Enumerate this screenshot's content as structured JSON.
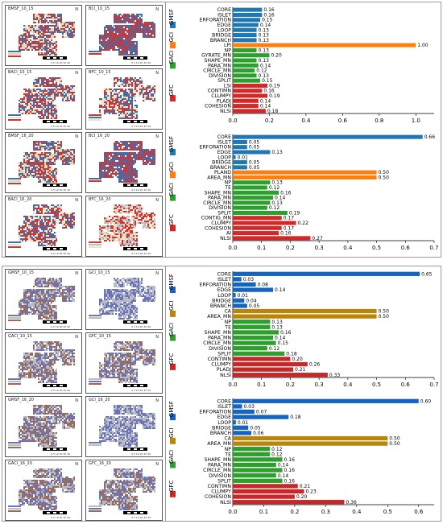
{
  "colors": {
    "gmsf": "#1f77b4",
    "gci": "#ff7f0e",
    "gaci": "#2ca02c",
    "gfc": "#d62728",
    "b_gmsf": "#1565c0",
    "b_gci": "#b8860b",
    "b_gaci": "#2e9e2e",
    "b_gfc": "#c62828",
    "map_blue": "#3b6fb6",
    "map_red": "#d4342c",
    "map_cream": "#efe3c4",
    "map_slate": "#6b74b8",
    "map_brown": "#a06a4e",
    "map_gray": "#b9bcc6"
  },
  "maps_top": [
    {
      "title": "BMSF_10_15",
      "palette": [
        "#3b6fb6",
        "#e8d7ad",
        "#d4342c"
      ]
    },
    {
      "title": "BCI_10_15",
      "palette": [
        "#3b6fb6",
        "#d4342c"
      ]
    },
    {
      "title": "BACI_10_15",
      "palette": [
        "#3b6fb6",
        "#efe3c4",
        "#d4342c"
      ]
    },
    {
      "title": "BFC_10_15",
      "palette": [
        "#d4342c",
        "#3b6fb6",
        "#efe3c4"
      ]
    },
    {
      "title": "BMSF_16_20",
      "palette": [
        "#3b6fb6",
        "#e8d7ad",
        "#d4342c"
      ]
    },
    {
      "title": "BCI_16_20",
      "palette": [
        "#3b6fb6",
        "#d4342c"
      ]
    },
    {
      "title": "BACI_16_20",
      "palette": [
        "#3b6fb6",
        "#efe3c4",
        "#d4342c"
      ]
    },
    {
      "title": "BFC_16_20",
      "palette": [
        "#d4342c",
        "#b9bcc6",
        "#efe3c4"
      ]
    }
  ],
  "maps_bottom": [
    {
      "title": "GMSF_10_15",
      "palette": [
        "#6b74b8",
        "#b9bcc6",
        "#a06a4e"
      ]
    },
    {
      "title": "GCI_10_15",
      "palette": [
        "#6b74b8",
        "#b9bcc6"
      ]
    },
    {
      "title": "GACI_10_15",
      "palette": [
        "#6b74b8",
        "#b9bcc6",
        "#a06a4e"
      ]
    },
    {
      "title": "GFC_10_15",
      "palette": [
        "#b9bcc6",
        "#6b74b8",
        "#a06a4e"
      ]
    },
    {
      "title": "GMSF_16_20",
      "palette": [
        "#6b74b8",
        "#b9bcc6",
        "#a06a4e"
      ]
    },
    {
      "title": "GCI_16_20",
      "palette": [
        "#6b74b8",
        "#b9bcc6"
      ]
    },
    {
      "title": "GACI_16_20",
      "palette": [
        "#6b74b8",
        "#b9bcc6",
        "#a06a4e"
      ]
    },
    {
      "title": "GFC_16_20",
      "palette": [
        "#b9bcc6",
        "#6b74b8",
        "#a06a4e"
      ]
    }
  ],
  "map_labels": {
    "north": "N",
    "scale": "0 5 10 20 30 40"
  },
  "chart_data": [
    {
      "type": "bar",
      "orientation": "horizontal",
      "xlim": [
        0,
        1.1
      ],
      "xticks": [
        "0.0",
        "0.2",
        "0.4",
        "0.6",
        "0.8",
        "1.0"
      ],
      "tick_values": [
        0,
        0.2,
        0.4,
        0.6,
        0.8,
        1.0
      ],
      "groups": [
        {
          "name": "GMSF",
          "color_key": "gmsf",
          "rows": [
            {
              "label": "CORE",
              "value": 0.16,
              "text": "0.16"
            },
            {
              "label": "ISLET",
              "value": 0.16,
              "text": "0.16"
            },
            {
              "label": "ERFORATION",
              "value": 0.15,
              "text": "0.15"
            },
            {
              "label": "EDGE",
              "value": 0.14,
              "text": "0.14"
            },
            {
              "label": "LOOP",
              "value": 0.13,
              "text": "0.13"
            },
            {
              "label": "BRIDGE",
              "value": 0.13,
              "text": "0.13"
            },
            {
              "label": "BRANCH",
              "value": 0.13,
              "text": "0.13"
            }
          ]
        },
        {
          "name": "GCI",
          "color_key": "gci",
          "rows": [
            {
              "label": "LPI",
              "value": 1.0,
              "text": "1.00"
            }
          ]
        },
        {
          "name": "GACI",
          "color_key": "gaci",
          "rows": [
            {
              "label": "NP",
              "value": 0.13,
              "text": "0.13"
            },
            {
              "label": "GYRATE_MN",
              "value": 0.2,
              "text": "0.20"
            },
            {
              "label": "SHAPE_MN",
              "value": 0.13,
              "text": "0.13"
            },
            {
              "label": "PARA_MN",
              "value": 0.14,
              "text": "0.14"
            },
            {
              "label": "CIRCLE_MN",
              "value": 0.12,
              "text": "0.12"
            },
            {
              "label": "DIVISION",
              "value": 0.13,
              "text": "0.13"
            },
            {
              "label": "SPLIT",
              "value": 0.15,
              "text": "0.15"
            }
          ]
        },
        {
          "name": "GFC",
          "color_key": "gfc",
          "rows": [
            {
              "label": "LSI",
              "value": 0.19,
              "text": "0.19"
            },
            {
              "label": "CONTIMN",
              "value": 0.16,
              "text": "0.16"
            },
            {
              "label": "CLUMPY",
              "value": 0.19,
              "text": "0.19"
            },
            {
              "label": "PLADJ",
              "value": 0.14,
              "text": "0.14"
            },
            {
              "label": "COHESION",
              "value": 0.14,
              "text": "0.14"
            },
            {
              "label": "NLSI",
              "value": 0.18,
              "text": "0.18"
            }
          ]
        }
      ]
    },
    {
      "type": "bar",
      "orientation": "horizontal",
      "xlim": [
        0,
        0.7
      ],
      "xticks": [
        "0.0",
        "0.1",
        "0.2",
        "0.3",
        "0.4",
        "0.5",
        "0.6",
        "0.7"
      ],
      "tick_values": [
        0,
        0.1,
        0.2,
        0.3,
        0.4,
        0.5,
        0.6,
        0.7
      ],
      "groups": [
        {
          "name": "GMSF",
          "color_key": "gmsf",
          "rows": [
            {
              "label": "CORE",
              "value": 0.66,
              "text": "0.66"
            },
            {
              "label": "ISLET",
              "value": 0.05,
              "text": "0.05"
            },
            {
              "label": "ERFORATION",
              "value": 0.05,
              "text": "0.05"
            },
            {
              "label": "EDGE",
              "value": 0.13,
              "text": "0.13"
            },
            {
              "label": "LOOP",
              "value": 0.01,
              "text": "0.01"
            },
            {
              "label": "BRIDGE",
              "value": 0.05,
              "text": "0.05"
            },
            {
              "label": "BRANCH",
              "value": 0.05,
              "text": "0.05"
            }
          ]
        },
        {
          "name": "GCI",
          "color_key": "gci",
          "rows": [
            {
              "label": "PLAND",
              "value": 0.5,
              "text": "0.50"
            },
            {
              "label": "AREA_MN",
              "value": 0.5,
              "text": "0.50"
            }
          ]
        },
        {
          "name": "GACI",
          "color_key": "gaci",
          "rows": [
            {
              "label": "NP",
              "value": 0.13,
              "text": "0.13"
            },
            {
              "label": "TE",
              "value": 0.12,
              "text": "0.12"
            },
            {
              "label": "SHAPE_MN",
              "value": 0.16,
              "text": "0.16"
            },
            {
              "label": "PARA_MN",
              "value": 0.14,
              "text": "0.14"
            },
            {
              "label": "CIRCLE_MN",
              "value": 0.13,
              "text": "0.13"
            },
            {
              "label": "DIVISION",
              "value": 0.12,
              "text": "0.12"
            },
            {
              "label": "SPLIT",
              "value": 0.19,
              "text": "0.19"
            }
          ]
        },
        {
          "name": "GFC",
          "color_key": "gfc",
          "rows": [
            {
              "label": "CONTIG_MN",
              "value": 0.17,
              "text": "0.17"
            },
            {
              "label": "CLUMPY",
              "value": 0.22,
              "text": "0.22"
            },
            {
              "label": "COHESION",
              "value": 0.17,
              "text": "0.17"
            },
            {
              "label": "AI",
              "value": 0.16,
              "text": "0.16"
            },
            {
              "label": "NLSI",
              "value": 0.27,
              "text": "0.27"
            }
          ]
        }
      ]
    },
    {
      "type": "bar",
      "orientation": "horizontal",
      "xlim": [
        0,
        0.7
      ],
      "xticks": [
        "0.0",
        "0.1",
        "0.2",
        "0.3",
        "0.4",
        "0.5",
        "0.6",
        "0.7"
      ],
      "tick_values": [
        0,
        0.1,
        0.2,
        0.3,
        0.4,
        0.5,
        0.6,
        0.7
      ],
      "groups": [
        {
          "name": "GMSF",
          "color_key": "b_gmsf",
          "rows": [
            {
              "label": "CORE",
              "value": 0.65,
              "text": "0.65"
            },
            {
              "label": "ISLET",
              "value": 0.03,
              "text": "0.03"
            },
            {
              "label": "ERFORATION",
              "value": 0.08,
              "text": "0.08"
            },
            {
              "label": "EDGE",
              "value": 0.14,
              "text": "0.14"
            },
            {
              "label": "LOOP",
              "value": 0.01,
              "text": "0.01"
            },
            {
              "label": "BRIDGE",
              "value": 0.04,
              "text": "0.04"
            },
            {
              "label": "BRANCH",
              "value": 0.05,
              "text": "0.05"
            }
          ]
        },
        {
          "name": "GCI",
          "color_key": "b_gci",
          "rows": [
            {
              "label": "CA",
              "value": 0.5,
              "text": "0.50"
            },
            {
              "label": "AREA_MN",
              "value": 0.5,
              "text": "0.50"
            }
          ]
        },
        {
          "name": "GACI",
          "color_key": "b_gaci",
          "rows": [
            {
              "label": "NP",
              "value": 0.13,
              "text": "0.13"
            },
            {
              "label": "TE",
              "value": 0.13,
              "text": "0.13"
            },
            {
              "label": "SHAPE_MN",
              "value": 0.16,
              "text": "0.16"
            },
            {
              "label": "PARA_MN",
              "value": 0.14,
              "text": "0.14"
            },
            {
              "label": "CIRCLE_MN",
              "value": 0.15,
              "text": "0.15"
            },
            {
              "label": "DIVISION",
              "value": 0.12,
              "text": "0.12"
            },
            {
              "label": "SPLIT",
              "value": 0.18,
              "text": "0.18"
            }
          ]
        },
        {
          "name": "GFC",
          "color_key": "b_gfc",
          "rows": [
            {
              "label": "CONTIMN",
              "value": 0.2,
              "text": "0.20"
            },
            {
              "label": "CLUMPY",
              "value": 0.26,
              "text": "0.26"
            },
            {
              "label": "PLADJ",
              "value": 0.21,
              "text": "0.21"
            },
            {
              "label": "NLSI",
              "value": 0.33,
              "text": "0.33"
            }
          ]
        }
      ]
    },
    {
      "type": "bar",
      "orientation": "horizontal",
      "xlim": [
        0,
        0.65
      ],
      "xticks": [
        "0.0",
        "0.1",
        "0.2",
        "0.3",
        "0.4",
        "0.5",
        "0.6"
      ],
      "tick_values": [
        0,
        0.1,
        0.2,
        0.3,
        0.4,
        0.5,
        0.6
      ],
      "groups": [
        {
          "name": "GMSF",
          "color_key": "b_gmsf",
          "rows": [
            {
              "label": "CORE",
              "value": 0.6,
              "text": "0.60"
            },
            {
              "label": "ISLET",
              "value": 0.03,
              "text": "0.03"
            },
            {
              "label": "ERFORATION",
              "value": 0.07,
              "text": "0.07"
            },
            {
              "label": "EDGE",
              "value": 0.18,
              "text": "0.18"
            },
            {
              "label": "LOOP",
              "value": 0.01,
              "text": "0.01"
            },
            {
              "label": "BRIDGE",
              "value": 0.05,
              "text": "0.05"
            },
            {
              "label": "BRANCH",
              "value": 0.06,
              "text": "0.06"
            }
          ]
        },
        {
          "name": "GCI",
          "color_key": "b_gci",
          "rows": [
            {
              "label": "CA",
              "value": 0.5,
              "text": "0.50"
            },
            {
              "label": "AREA_MN",
              "value": 0.5,
              "text": "0.50"
            }
          ]
        },
        {
          "name": "GACI",
          "color_key": "b_gaci",
          "rows": [
            {
              "label": "NP",
              "value": 0.12,
              "text": "0.12"
            },
            {
              "label": "TE",
              "value": 0.12,
              "text": "0.12"
            },
            {
              "label": "SHAPE_MN",
              "value": 0.16,
              "text": "0.16"
            },
            {
              "label": "PARA_MN",
              "value": 0.14,
              "text": "0.14"
            },
            {
              "label": "CIRCLE_MN",
              "value": 0.16,
              "text": "0.16"
            },
            {
              "label": "DIVISION",
              "value": 0.14,
              "text": "0.14"
            },
            {
              "label": "SPLIT",
              "value": 0.16,
              "text": "0.16"
            }
          ]
        },
        {
          "name": "GFC",
          "color_key": "b_gfc",
          "rows": [
            {
              "label": "CONTIMN",
              "value": 0.21,
              "text": "0.21"
            },
            {
              "label": "CLUMPY",
              "value": 0.23,
              "text": "0.23"
            },
            {
              "label": "COHESION",
              "value": 0.2,
              "text": "0.20"
            },
            {
              "label": "NLSI",
              "value": 0.36,
              "text": "0.36"
            }
          ]
        }
      ]
    }
  ]
}
